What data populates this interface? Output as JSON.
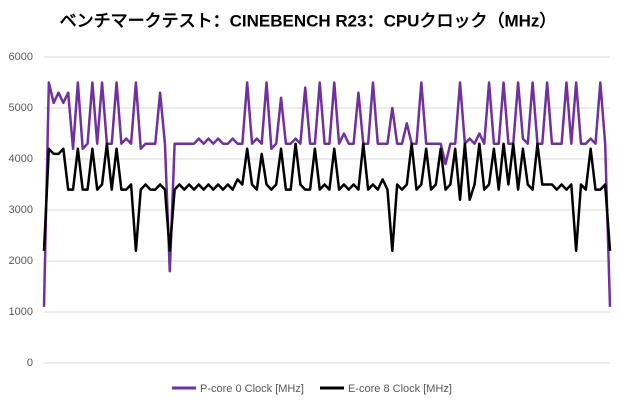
{
  "chart_data": {
    "type": "line",
    "title": "ベンチマークテスト：CINEBENCH R23：CPUクロック（MHz）",
    "ylim": [
      0,
      6000
    ],
    "yticks": [
      0,
      1000,
      2000,
      3000,
      4000,
      5000,
      6000
    ],
    "grid": true,
    "legend": "bottom",
    "series": [
      {
        "name": "P-core 0 Clock [MHz]",
        "color": "#7030a0",
        "values": [
          1100,
          5500,
          5100,
          5300,
          5100,
          5300,
          4200,
          5500,
          4200,
          4300,
          5500,
          4300,
          5500,
          4300,
          4300,
          5500,
          4300,
          4400,
          4300,
          5500,
          4200,
          4300,
          4300,
          4300,
          5300,
          4300,
          1800,
          4300,
          4300,
          4300,
          4300,
          4300,
          4400,
          4300,
          4400,
          4300,
          4400,
          4300,
          4300,
          4400,
          4300,
          4300,
          5500,
          4300,
          4400,
          4300,
          5500,
          4200,
          4300,
          5200,
          4300,
          4300,
          4400,
          4300,
          5400,
          4300,
          4300,
          5500,
          4300,
          4300,
          5500,
          4300,
          4500,
          4300,
          4300,
          5300,
          4300,
          4300,
          5500,
          4300,
          4300,
          4300,
          5000,
          4300,
          4300,
          4700,
          4300,
          4300,
          5500,
          4300,
          4300,
          4300,
          4300,
          3900,
          4300,
          4300,
          5500,
          4300,
          4400,
          4300,
          4500,
          4300,
          5500,
          4300,
          4300,
          5500,
          4300,
          4300,
          5500,
          4400,
          4300,
          5500,
          4300,
          4300,
          5500,
          4300,
          4300,
          4300,
          5500,
          4300,
          5500,
          4300,
          4300,
          4400,
          4300,
          5500,
          4300,
          1100
        ]
      },
      {
        "name": "E-core 8 Clock [MHz]",
        "color": "#000000",
        "values": [
          2200,
          4200,
          4100,
          4100,
          4200,
          3400,
          3400,
          4200,
          3400,
          3400,
          4200,
          3400,
          3500,
          4300,
          3400,
          4200,
          3400,
          3400,
          3500,
          2200,
          3400,
          3500,
          3400,
          3400,
          3500,
          3400,
          2200,
          3400,
          3500,
          3400,
          3500,
          3400,
          3500,
          3400,
          3500,
          3400,
          3500,
          3400,
          3500,
          3400,
          3600,
          3500,
          4200,
          3500,
          3400,
          4100,
          3500,
          3400,
          3500,
          4200,
          3400,
          3400,
          4300,
          3500,
          3400,
          3400,
          4200,
          3400,
          3500,
          3400,
          4200,
          3400,
          3500,
          3400,
          3500,
          3400,
          4300,
          3400,
          3500,
          3400,
          3600,
          3400,
          2200,
          3500,
          3400,
          3500,
          4300,
          3400,
          3500,
          4200,
          3400,
          3500,
          4200,
          3400,
          3500,
          4200,
          3200,
          4300,
          3200,
          3500,
          4300,
          3400,
          3500,
          4200,
          3400,
          4300,
          3500,
          4300,
          3400,
          4200,
          3500,
          3400,
          4300,
          3500,
          3500,
          3500,
          3400,
          3500,
          3400,
          3500,
          2200,
          3500,
          3400,
          4200,
          3400,
          3400,
          3500,
          2200
        ]
      }
    ]
  }
}
